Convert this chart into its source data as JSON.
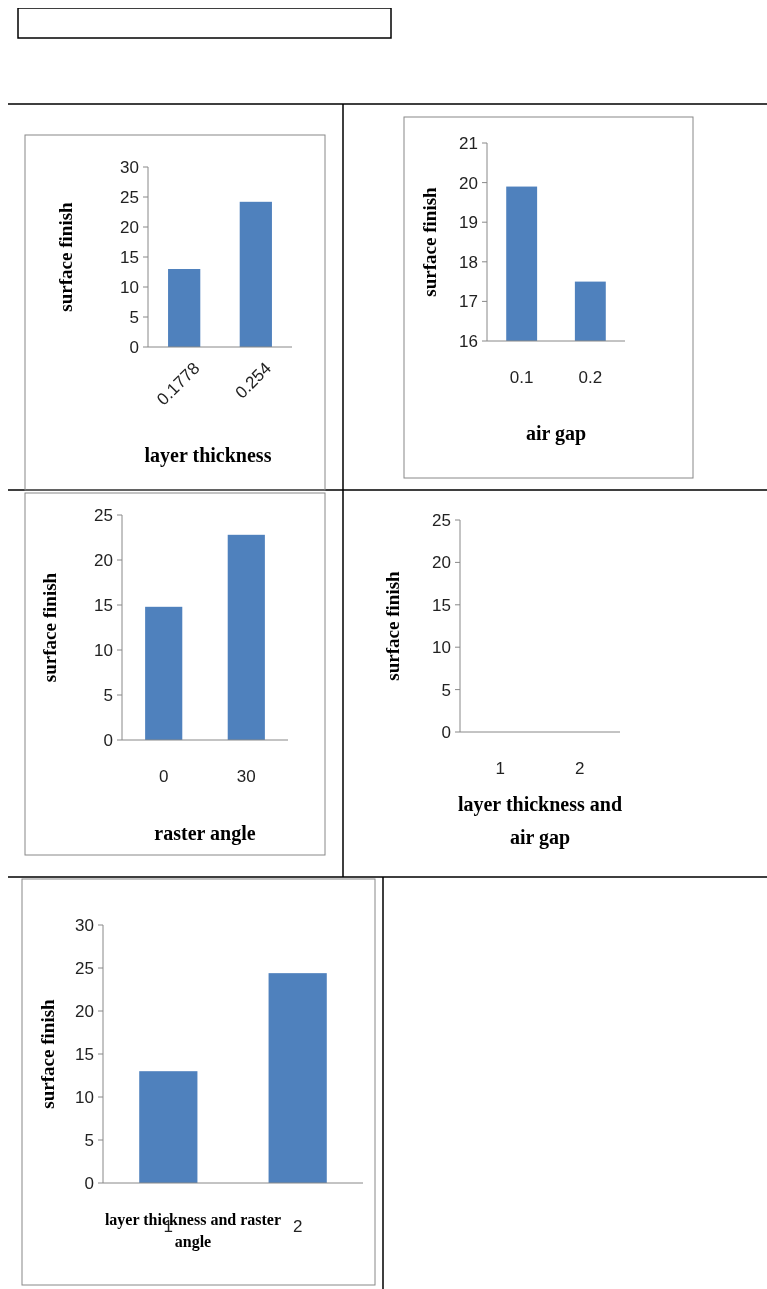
{
  "chart_data": [
    {
      "type": "bar",
      "ylabel": "surface finish",
      "xlabel": "layer thickness",
      "categories": [
        "0.1778",
        "0.254"
      ],
      "values": [
        13,
        24.2
      ],
      "color": "#4f81bd",
      "ylim": [
        0,
        30
      ],
      "yticks": [
        0,
        5,
        10,
        15,
        20,
        25,
        30
      ]
    },
    {
      "type": "bar",
      "ylabel": "surface finish",
      "xlabel": "air gap",
      "categories": [
        "0.1",
        "0.2"
      ],
      "values": [
        19.9,
        17.5
      ],
      "color": "#4f81bd",
      "ylim": [
        16,
        21
      ],
      "yticks": [
        16,
        17,
        18,
        19,
        20,
        21
      ]
    },
    {
      "type": "bar",
      "ylabel": "surface finish",
      "xlabel": "raster angle",
      "categories": [
        "0",
        "30"
      ],
      "values": [
        14.8,
        22.8
      ],
      "color": "#4f81bd",
      "ylim": [
        0,
        25
      ],
      "yticks": [
        0,
        5,
        10,
        15,
        20,
        25
      ]
    },
    {
      "type": "bar",
      "ylabel": "surface finish",
      "xlabel": "layer thickness and air gap",
      "categories": [
        "1",
        "2"
      ],
      "values": [
        null,
        null
      ],
      "ylim": [
        0,
        25
      ],
      "yticks": [
        0,
        5,
        10,
        15,
        20,
        25
      ]
    },
    {
      "type": "bar",
      "ylabel": "surface finish",
      "xlabel": "layer thickness and raster angle",
      "categories": [
        "1",
        "2"
      ],
      "values": [
        13,
        24.4
      ],
      "color": "#4f81bd",
      "ylim": [
        0,
        30
      ],
      "yticks": [
        0,
        5,
        10,
        15,
        20,
        25,
        30
      ]
    }
  ]
}
